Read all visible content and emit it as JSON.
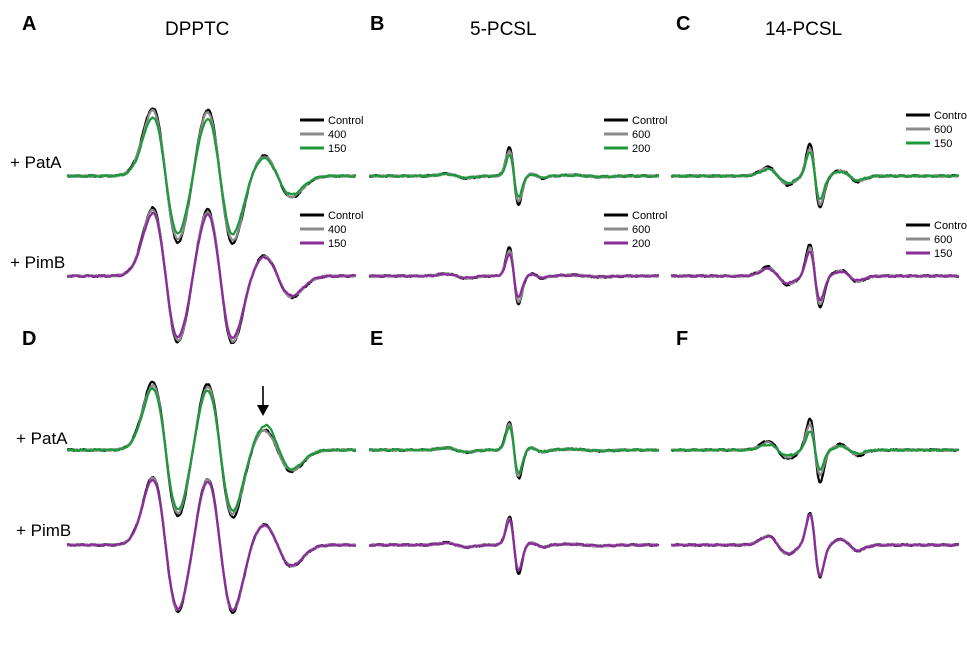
{
  "figure": {
    "column_titles": [
      "DPPTC",
      "5-PCSL",
      "14-PCSL"
    ],
    "row_labels": {
      "pata": "+ PatA",
      "pimb": "+ PimB"
    },
    "colors": {
      "control": "#000000",
      "mid": "#8c8c8c",
      "pata": "#1e9a3c",
      "pimb": "#8a2d9a"
    }
  },
  "chart_data": [
    {
      "type": "line",
      "panel": "A",
      "title": "DPPTC",
      "spectrum": "dpptc",
      "traces": [
        {
          "label": "+ PatA",
          "legend": [
            "Control",
            "400",
            "150"
          ],
          "series_color": "pata",
          "scales": [
            1.0,
            0.96,
            0.86
          ],
          "extra_bump": 0
        },
        {
          "label": "+ PimB",
          "legend": [
            "Control",
            "400",
            "150"
          ],
          "series_color": "pimb",
          "scales": [
            1.0,
            0.97,
            0.92
          ],
          "extra_bump": 0
        }
      ]
    },
    {
      "type": "line",
      "panel": "B",
      "title": "5-PCSL",
      "spectrum": "pcsl5",
      "traces": [
        {
          "label": "+ PatA",
          "legend": [
            "Control",
            "600",
            "200"
          ],
          "series_color": "pata",
          "scales": [
            1.0,
            0.9,
            0.72
          ],
          "extra_bump": 0
        },
        {
          "label": "+ PimB",
          "legend": [
            "Control",
            "600",
            "200"
          ],
          "series_color": "pimb",
          "scales": [
            1.0,
            0.9,
            0.75
          ],
          "extra_bump": 0
        }
      ]
    },
    {
      "type": "line",
      "panel": "C",
      "title": "14-PCSL",
      "spectrum": "pcsl14",
      "traces": [
        {
          "label": "+ PatA",
          "legend": [
            "Control",
            "600",
            "150"
          ],
          "series_color": "pata",
          "scales": [
            1.0,
            0.88,
            0.74
          ],
          "extra_bump": 0
        },
        {
          "label": "+ PimB",
          "legend": [
            "Control",
            "600",
            "150"
          ],
          "series_color": "pimb",
          "scales": [
            1.0,
            0.88,
            0.78
          ],
          "extra_bump": 0
        }
      ]
    },
    {
      "type": "line",
      "panel": "D",
      "title": "",
      "spectrum": "dpptc",
      "traces": [
        {
          "label": "+ PatA",
          "legend": [],
          "series_color": "pata",
          "scales": [
            1.0,
            0.95,
            0.9
          ],
          "extra_bump": 1
        },
        {
          "label": "+ PimB",
          "legend": [],
          "series_color": "pimb",
          "scales": [
            1.0,
            0.98,
            0.96
          ],
          "extra_bump": 0
        }
      ]
    },
    {
      "type": "line",
      "panel": "E",
      "title": "",
      "spectrum": "pcsl5",
      "traces": [
        {
          "label": "+ PatA",
          "legend": [],
          "series_color": "pata",
          "scales": [
            1.0,
            0.9,
            0.82
          ],
          "extra_bump": 0
        },
        {
          "label": "+ PimB",
          "legend": [],
          "series_color": "pimb",
          "scales": [
            1.0,
            0.9,
            0.88
          ],
          "extra_bump": 0
        }
      ]
    },
    {
      "type": "line",
      "panel": "F",
      "title": "",
      "spectrum": "pcsl14",
      "traces": [
        {
          "label": "+ PatA",
          "legend": [],
          "series_color": "pata",
          "scales": [
            1.0,
            0.8,
            0.6
          ],
          "extra_bump": 0
        },
        {
          "label": "+ PimB",
          "legend": [],
          "series_color": "pimb",
          "scales": [
            1.0,
            0.98,
            0.96
          ],
          "extra_bump": 0
        }
      ]
    }
  ]
}
